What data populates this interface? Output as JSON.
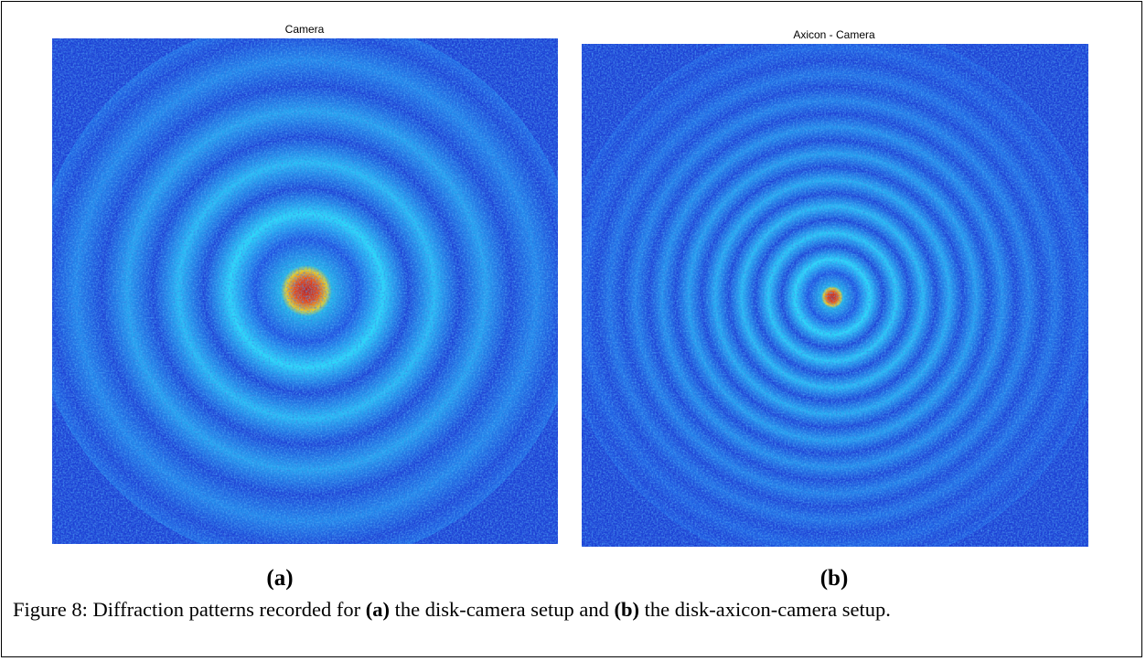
{
  "figure": {
    "panel_a": {
      "title": "Camera",
      "label": "(a)"
    },
    "panel_b": {
      "title": "Axicon - Camera",
      "label": "(b)"
    },
    "caption": {
      "prefix": "Figure 8: Diffraction patterns recorded for",
      "ref_a": "(a)",
      "middle": "the disk-camera setup and",
      "ref_b": "(b)",
      "suffix": "the disk-axicon-camera setup."
    }
  }
}
